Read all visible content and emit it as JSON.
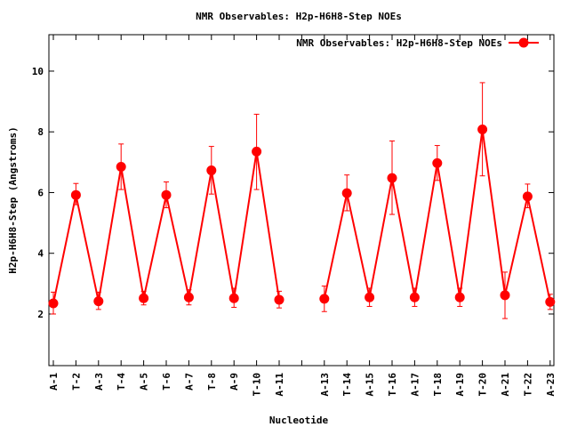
{
  "chart_data": {
    "type": "line",
    "title": "NMR Observables: H2p-H6H8-Step NOEs",
    "xlabel": "Nucleotide",
    "ylabel": "H2p-H6H8-Step (Angstroms)",
    "ylim": [
      0.3,
      11.2
    ],
    "yticks": [
      2,
      4,
      6,
      8,
      10
    ],
    "grid": false,
    "legend_position": "top-right",
    "categories": [
      "A-1",
      "T-2",
      "A-3",
      "T-4",
      "A-5",
      "T-6",
      "A-7",
      "T-8",
      "A-9",
      "T-10",
      "A-11",
      "",
      "A-13",
      "T-14",
      "A-15",
      "T-16",
      "A-17",
      "T-18",
      "A-19",
      "T-20",
      "A-21",
      "T-22",
      "A-23"
    ],
    "series": [
      {
        "name": "NMR Observables: H2p-H6H8-Step NOEs",
        "color": "#ff0000",
        "segments": [
          {
            "start_index": 0,
            "values": [
              2.35,
              5.92,
              2.42,
              6.85,
              2.52,
              5.92,
              2.55,
              6.73,
              2.52,
              7.35,
              2.47
            ],
            "err_low": [
              2.0,
              5.6,
              2.15,
              6.1,
              2.3,
              5.5,
              2.3,
              5.95,
              2.22,
              6.1,
              2.2
            ],
            "err_high": [
              2.72,
              6.3,
              2.72,
              7.6,
              2.75,
              6.35,
              2.8,
              7.52,
              2.85,
              8.58,
              2.75
            ]
          },
          {
            "start_index": 12,
            "values": [
              2.5,
              5.98,
              2.55,
              6.48,
              2.55,
              6.97,
              2.55,
              8.08,
              2.62,
              5.87,
              2.4
            ],
            "err_low": [
              2.08,
              5.4,
              2.25,
              5.28,
              2.25,
              6.4,
              2.25,
              6.55,
              1.85,
              5.5,
              2.15
            ],
            "err_high": [
              2.92,
              6.58,
              2.85,
              7.7,
              2.85,
              7.55,
              2.85,
              9.62,
              3.38,
              6.28,
              2.65
            ]
          }
        ]
      }
    ]
  }
}
